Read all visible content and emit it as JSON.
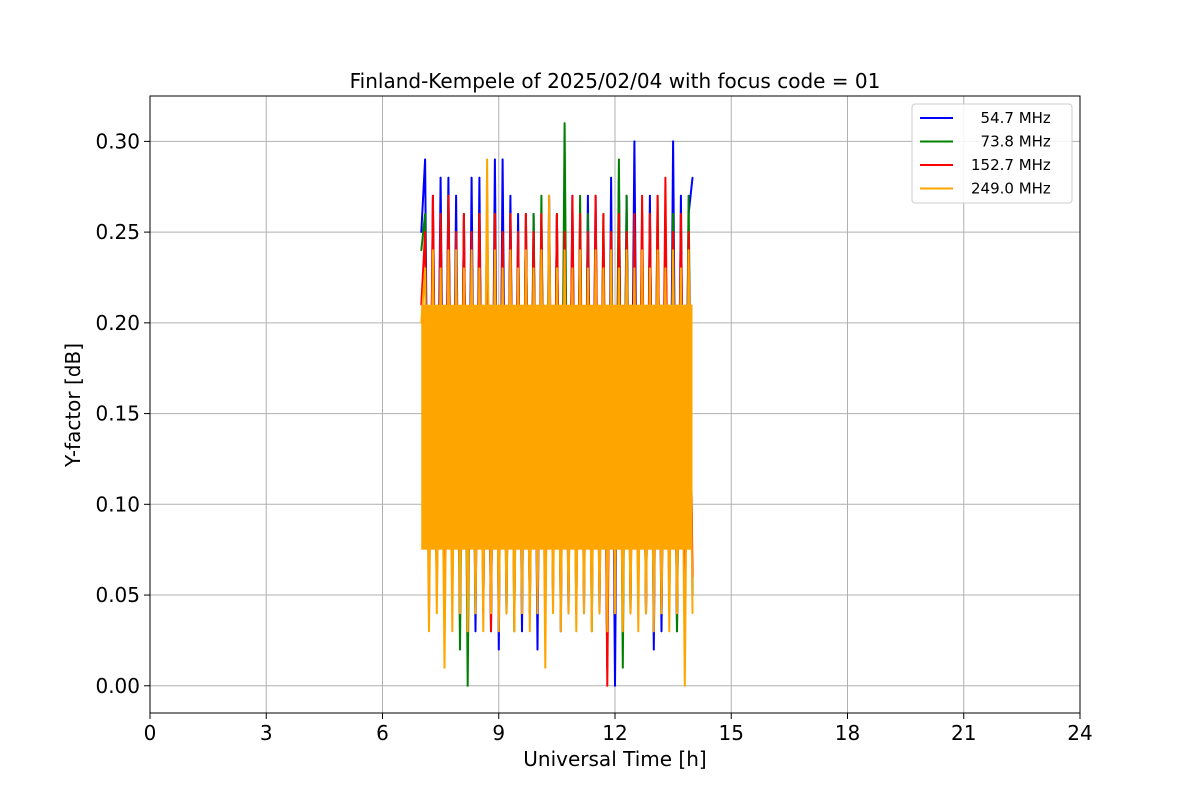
{
  "chart_data": {
    "type": "line",
    "title": "Finland-Kempele of 2025/02/04 with focus code = 01",
    "xlabel": "Universal Time [h]",
    "ylabel": "Y-factor [dB]",
    "xlim": [
      0,
      24
    ],
    "ylim": [
      -0.015,
      0.325
    ],
    "xticks": [
      0,
      3,
      6,
      9,
      12,
      15,
      18,
      21,
      24
    ],
    "xtick_labels": [
      "0",
      "3",
      "6",
      "9",
      "12",
      "15",
      "18",
      "21",
      "24"
    ],
    "yticks": [
      0.0,
      0.05,
      0.1,
      0.15,
      0.2,
      0.25,
      0.3
    ],
    "ytick_labels": [
      "0.00",
      "0.05",
      "0.10",
      "0.15",
      "0.20",
      "0.25",
      "0.30"
    ],
    "grid": true,
    "legend_position": "top-right",
    "data_range_x": [
      7.0,
      14.0
    ],
    "series": [
      {
        "name": "  54.7 MHz",
        "color": "#0000ff",
        "x": [
          7.0,
          7.1,
          7.2,
          7.3,
          7.4,
          7.5,
          7.6,
          7.7,
          7.8,
          7.9,
          8.0,
          8.1,
          8.2,
          8.3,
          8.4,
          8.5,
          8.6,
          8.7,
          8.8,
          8.9,
          9.0,
          9.1,
          9.2,
          9.3,
          9.4,
          9.5,
          9.6,
          9.7,
          9.8,
          9.9,
          10.0,
          10.1,
          10.2,
          10.3,
          10.4,
          10.5,
          10.6,
          10.7,
          10.8,
          10.9,
          11.0,
          11.1,
          11.2,
          11.3,
          11.4,
          11.5,
          11.6,
          11.7,
          11.8,
          11.9,
          12.0,
          12.1,
          12.2,
          12.3,
          12.4,
          12.5,
          12.6,
          12.7,
          12.8,
          12.9,
          13.0,
          13.1,
          13.2,
          13.3,
          13.4,
          13.5,
          13.6,
          13.7,
          13.8,
          13.9,
          14.0
        ],
        "values": [
          0.25,
          0.29,
          0.04,
          0.27,
          0.08,
          0.28,
          0.05,
          0.28,
          0.06,
          0.27,
          0.05,
          0.26,
          0.04,
          0.28,
          0.03,
          0.28,
          0.04,
          0.27,
          0.03,
          0.29,
          0.02,
          0.29,
          0.04,
          0.27,
          0.05,
          0.26,
          0.03,
          0.26,
          0.04,
          0.26,
          0.02,
          0.26,
          0.04,
          0.27,
          0.05,
          0.26,
          0.03,
          0.25,
          0.04,
          0.27,
          0.05,
          0.26,
          0.04,
          0.27,
          0.05,
          0.27,
          0.04,
          0.25,
          0.01,
          0.28,
          0.0,
          0.28,
          0.04,
          0.27,
          0.05,
          0.3,
          0.05,
          0.26,
          0.04,
          0.27,
          0.02,
          0.25,
          0.03,
          0.26,
          0.04,
          0.3,
          0.03,
          0.27,
          0.04,
          0.26,
          0.28
        ]
      },
      {
        "name": "  73.8 MHz",
        "color": "#008000",
        "x": [
          7.0,
          7.1,
          7.2,
          7.3,
          7.4,
          7.5,
          7.6,
          7.7,
          7.8,
          7.9,
          8.0,
          8.1,
          8.2,
          8.3,
          8.4,
          8.5,
          8.6,
          8.7,
          8.8,
          8.9,
          9.0,
          9.1,
          9.2,
          9.3,
          9.4,
          9.5,
          9.6,
          9.7,
          9.8,
          9.9,
          10.0,
          10.1,
          10.2,
          10.3,
          10.4,
          10.5,
          10.6,
          10.7,
          10.8,
          10.9,
          11.0,
          11.1,
          11.2,
          11.3,
          11.4,
          11.5,
          11.6,
          11.7,
          11.8,
          11.9,
          12.0,
          12.1,
          12.2,
          12.3,
          12.4,
          12.5,
          12.6,
          12.7,
          12.8,
          12.9,
          13.0,
          13.1,
          13.2,
          13.3,
          13.4,
          13.5,
          13.6,
          13.7,
          13.8,
          13.9,
          14.0
        ],
        "values": [
          0.24,
          0.26,
          0.06,
          0.25,
          0.05,
          0.26,
          0.04,
          0.27,
          0.05,
          0.25,
          0.02,
          0.26,
          0.0,
          0.25,
          0.04,
          0.26,
          0.05,
          0.25,
          0.04,
          0.26,
          0.05,
          0.25,
          0.04,
          0.26,
          0.03,
          0.25,
          0.05,
          0.26,
          0.04,
          0.26,
          0.05,
          0.27,
          0.04,
          0.25,
          0.05,
          0.26,
          0.04,
          0.31,
          0.05,
          0.25,
          0.04,
          0.27,
          0.05,
          0.26,
          0.03,
          0.25,
          0.05,
          0.26,
          0.04,
          0.25,
          0.05,
          0.29,
          0.01,
          0.27,
          0.04,
          0.26,
          0.05,
          0.25,
          0.04,
          0.26,
          0.05,
          0.27,
          0.04,
          0.25,
          0.05,
          0.26,
          0.03,
          0.25,
          0.04,
          0.27,
          0.05
        ]
      },
      {
        "name": "152.7 MHz",
        "color": "#ff0000",
        "x": [
          7.0,
          7.1,
          7.2,
          7.3,
          7.4,
          7.5,
          7.6,
          7.7,
          7.8,
          7.9,
          8.0,
          8.1,
          8.2,
          8.3,
          8.4,
          8.5,
          8.6,
          8.7,
          8.8,
          8.9,
          9.0,
          9.1,
          9.2,
          9.3,
          9.4,
          9.5,
          9.6,
          9.7,
          9.8,
          9.9,
          10.0,
          10.1,
          10.2,
          10.3,
          10.4,
          10.5,
          10.6,
          10.7,
          10.8,
          10.9,
          11.0,
          11.1,
          11.2,
          11.3,
          11.4,
          11.5,
          11.6,
          11.7,
          11.8,
          11.9,
          12.0,
          12.1,
          12.2,
          12.3,
          12.4,
          12.5,
          12.6,
          12.7,
          12.8,
          12.9,
          13.0,
          13.1,
          13.2,
          13.3,
          13.4,
          13.5,
          13.6,
          13.7,
          13.8,
          13.9,
          14.0
        ],
        "values": [
          0.21,
          0.25,
          0.06,
          0.27,
          0.05,
          0.26,
          0.04,
          0.27,
          0.05,
          0.25,
          0.04,
          0.26,
          0.03,
          0.25,
          0.05,
          0.26,
          0.04,
          0.25,
          0.03,
          0.26,
          0.04,
          0.25,
          0.05,
          0.26,
          0.04,
          0.25,
          0.05,
          0.26,
          0.04,
          0.25,
          0.05,
          0.26,
          0.04,
          0.25,
          0.05,
          0.26,
          0.04,
          0.25,
          0.05,
          0.27,
          0.04,
          0.26,
          0.05,
          0.25,
          0.04,
          0.27,
          0.05,
          0.26,
          0.0,
          0.25,
          0.04,
          0.26,
          0.05,
          0.25,
          0.04,
          0.26,
          0.05,
          0.27,
          0.04,
          0.26,
          0.05,
          0.27,
          0.04,
          0.28,
          0.05,
          0.25,
          0.04,
          0.26,
          0.05,
          0.25,
          0.06
        ]
      },
      {
        "name": "249.0 MHz",
        "color": "#ffa500",
        "x": [
          7.0,
          7.1,
          7.2,
          7.3,
          7.4,
          7.5,
          7.6,
          7.7,
          7.8,
          7.9,
          8.0,
          8.1,
          8.2,
          8.3,
          8.4,
          8.5,
          8.6,
          8.7,
          8.8,
          8.9,
          9.0,
          9.1,
          9.2,
          9.3,
          9.4,
          9.5,
          9.6,
          9.7,
          9.8,
          9.9,
          10.0,
          10.1,
          10.2,
          10.3,
          10.4,
          10.5,
          10.6,
          10.7,
          10.8,
          10.9,
          11.0,
          11.1,
          11.2,
          11.3,
          11.4,
          11.5,
          11.6,
          11.7,
          11.8,
          11.9,
          12.0,
          12.1,
          12.2,
          12.3,
          12.4,
          12.5,
          12.6,
          12.7,
          12.8,
          12.9,
          13.0,
          13.1,
          13.2,
          13.3,
          13.4,
          13.5,
          13.6,
          13.7,
          13.8,
          13.9,
          14.0
        ],
        "values": [
          0.2,
          0.23,
          0.03,
          0.24,
          0.04,
          0.23,
          0.01,
          0.24,
          0.03,
          0.24,
          0.04,
          0.23,
          0.03,
          0.24,
          0.04,
          0.23,
          0.03,
          0.29,
          0.04,
          0.24,
          0.03,
          0.23,
          0.04,
          0.24,
          0.03,
          0.23,
          0.04,
          0.24,
          0.03,
          0.23,
          0.04,
          0.24,
          0.01,
          0.27,
          0.04,
          0.23,
          0.03,
          0.24,
          0.04,
          0.23,
          0.03,
          0.24,
          0.04,
          0.23,
          0.03,
          0.24,
          0.04,
          0.23,
          0.03,
          0.24,
          0.04,
          0.23,
          0.03,
          0.24,
          0.04,
          0.23,
          0.03,
          0.24,
          0.04,
          0.23,
          0.03,
          0.24,
          0.04,
          0.23,
          0.03,
          0.24,
          0.04,
          0.23,
          0.0,
          0.24,
          0.04
        ]
      }
    ]
  }
}
